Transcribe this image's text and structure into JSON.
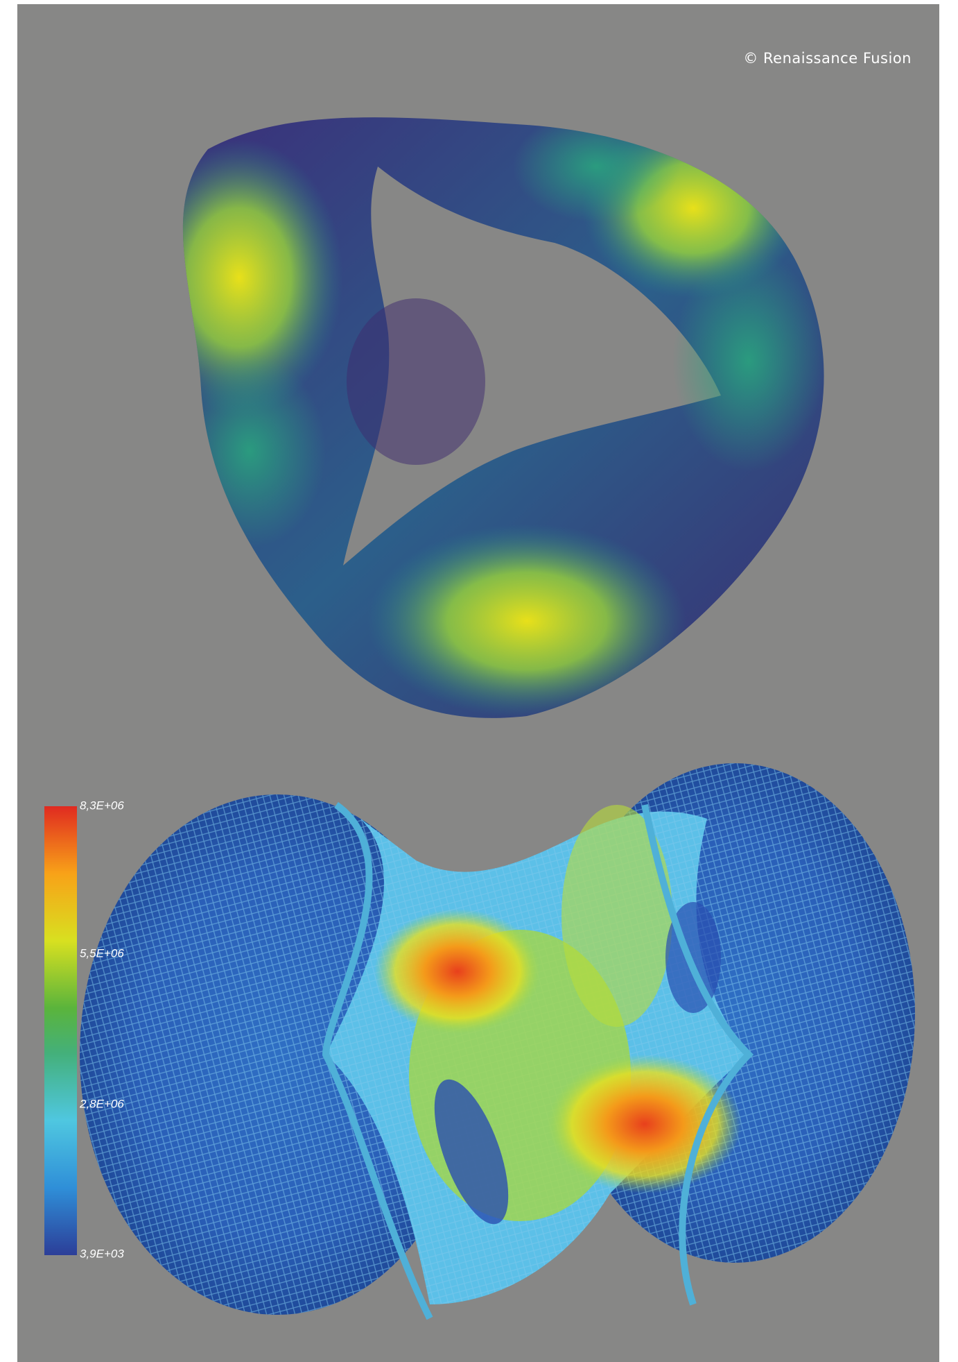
{
  "credit": "© Renaissance Fusion",
  "colorbar": {
    "labels": [
      "8,3E+06",
      "5,5E+06",
      "2,8E+06",
      "3,9E+03"
    ]
  }
}
